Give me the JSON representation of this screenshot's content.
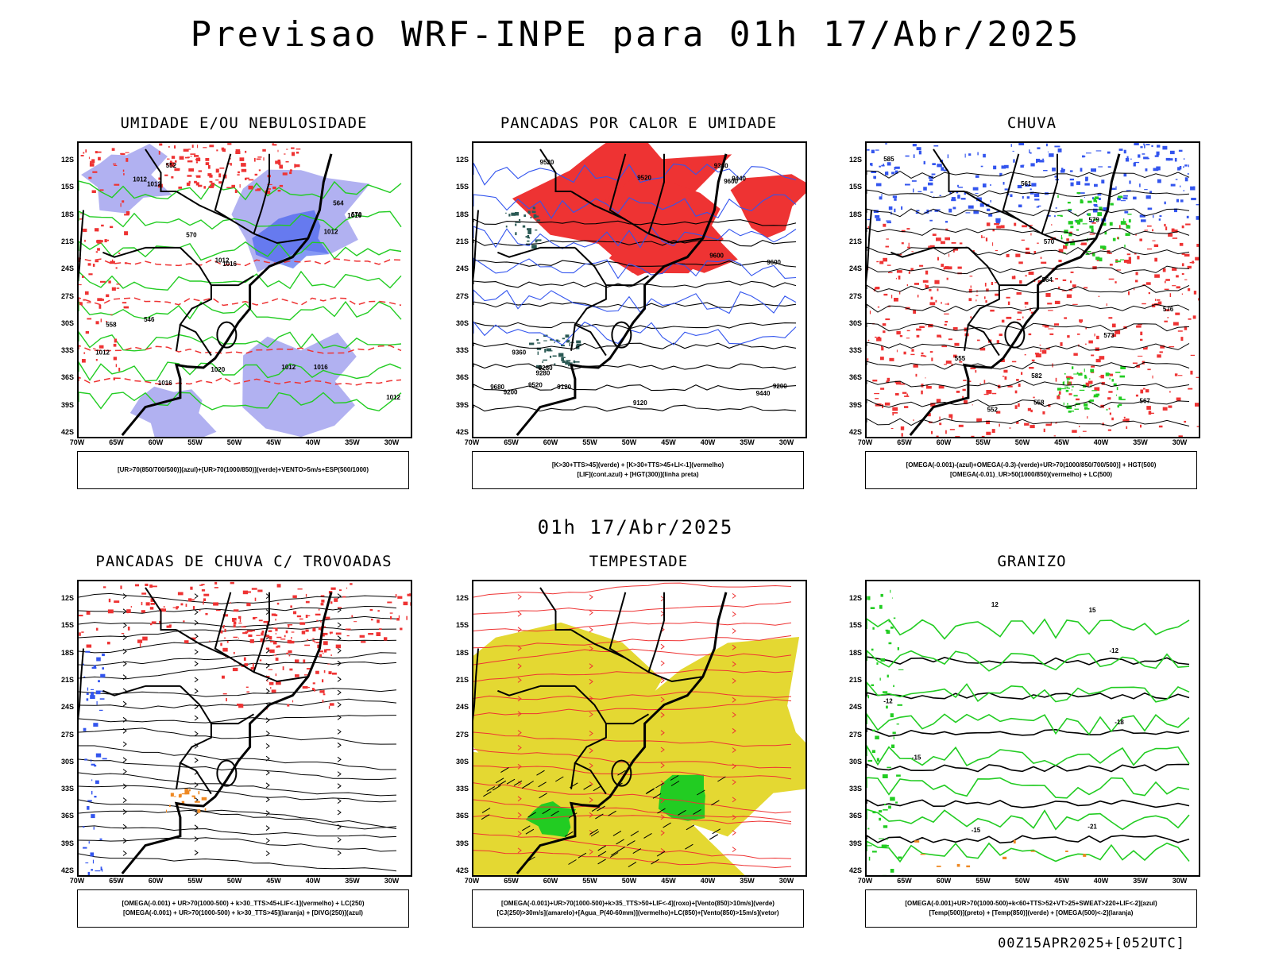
{
  "header": {
    "title": "Previsao WRF-INPE  para 01h 17/Abr/2025",
    "mid_title": "01h 17/Abr/2025",
    "run_stamp": "00Z15APR2025+[052UTC]"
  },
  "axes": {
    "lat_labels": [
      "12S",
      "15S",
      "18S",
      "21S",
      "24S",
      "27S",
      "30S",
      "33S",
      "36S",
      "39S",
      "42S"
    ],
    "lon_labels": [
      "70W",
      "65W",
      "60W",
      "55W",
      "50W",
      "45W",
      "40W",
      "35W",
      "30W"
    ]
  },
  "colors": {
    "blue": "#3355ee",
    "lightblue": "#a8a8f0",
    "green": "#22cc22",
    "red": "#ee3333",
    "yellow": "#e4d832",
    "orange": "#ee8822",
    "darkteal": "#2b5a55",
    "black": "#000000"
  },
  "chart_data": [
    {
      "type": "map",
      "title": "UMIDADE E/OU NEBULOSIDADE",
      "legend": [
        "[UR>70(850/700/500)](azul)+[UR>70(1000/850)](verde)+VENTO>5m/s+ESP(500/1000)"
      ],
      "contour_labels": [
        "1012",
        "1012",
        "1012",
        "1016",
        "1020",
        "1012",
        "1016",
        "1016",
        "1012",
        "1016",
        "1012",
        "1012",
        "570",
        "570",
        "564",
        "558",
        "552",
        "546"
      ]
    },
    {
      "type": "map",
      "title": "PANCADAS POR CALOR E UMIDADE",
      "legend": [
        "[K>30+TTS>45](verde) + [K>30+TTS>45+LI<-1](vermelho)",
        "[LIF](cont.azul) + [HGT(300)](linha preta)"
      ],
      "contour_labels": [
        "9680",
        "9600",
        "9520",
        "9440",
        "9360",
        "9280",
        "9200",
        "9120",
        "9600",
        "9520",
        "9440",
        "9360",
        "9280",
        "9200",
        "9120",
        "9600",
        "9520"
      ]
    },
    {
      "type": "map",
      "title": "CHUVA",
      "legend": [
        "[OMEGA(-0.001)-(azul)+OMEGA(-0.3)-(verde)+UR>70(1000/850/700/500)] + HGT(500)",
        "[OMEGA(-0.01)_UR>50(1000/850)(vermelho) + LC(500)"
      ],
      "contour_labels": [
        "585",
        "582",
        "579",
        "576",
        "573",
        "570",
        "567",
        "564",
        "561",
        "558",
        "555",
        "552"
      ]
    },
    {
      "type": "map",
      "title": "PANCADAS DE CHUVA C/ TROVOADAS",
      "legend": [
        "[OMEGA(-0.001) + UR>70(1000-500) + k>30_TTS>45+LIF<-1](vermelho) + LC(250)",
        "[OMEGA(-0.001) + UR>70(1000-500) + k>30_TTS>45](laranja) + [DIVG(250)](azul)"
      ],
      "contour_labels": []
    },
    {
      "type": "map",
      "title": "TEMPESTADE",
      "legend": [
        "[OMEGA(-0.001)+UR>70(1000-500)+k>35_TTS>50+LIF<-4](roxo)+[Vento(850)>10m/s](verde)",
        "[CJ(250)>30m/s](amarelo)+[Agua_P(40-60mm)](vermelho)+LC(850)+[Vento(850)>15m/s](vetor)"
      ],
      "contour_labels": []
    },
    {
      "type": "map",
      "title": "GRANIZO",
      "legend": [
        "[OMEGA(-0.001)+UR>70(1000-500)+k<60+TTS>52+VT>25+SWEAT>220+LIF<-2](azul)",
        "[Temp(500)](preto) + [Temp(850)](verde) + [OMEGA(500)<-2](laranja)"
      ],
      "contour_labels": [
        "-12",
        "-12",
        "-15",
        "-15",
        "-18",
        "-21",
        "12",
        "15"
      ]
    }
  ]
}
